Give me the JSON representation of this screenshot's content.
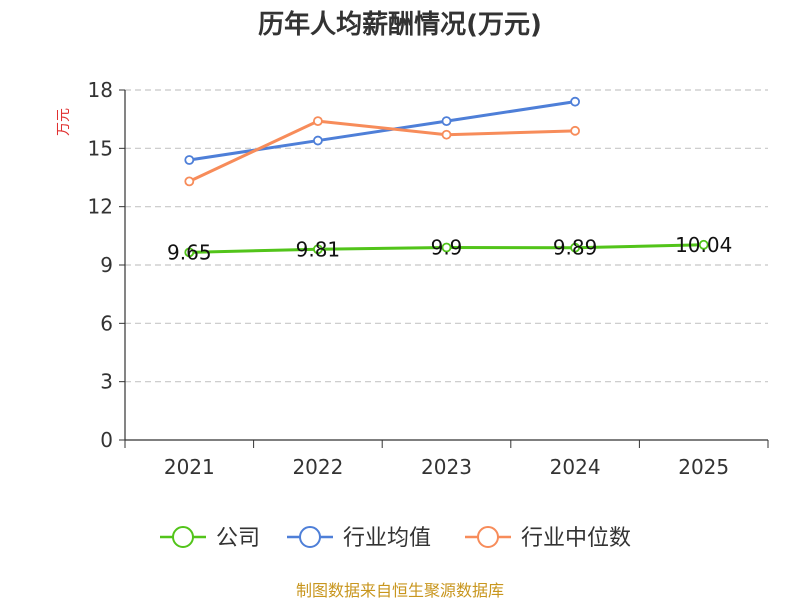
{
  "chart_data": {
    "type": "line",
    "title": "历年人均薪酬情况(万元)",
    "ylabel": "万元",
    "xlabel": "",
    "categories": [
      "2021",
      "2022",
      "2023",
      "2024",
      "2025"
    ],
    "ylim": [
      0,
      18
    ],
    "yticks": [
      "0",
      "3",
      "6",
      "9",
      "12",
      "15",
      "18"
    ],
    "grid": true,
    "legend_position": "bottom",
    "series": [
      {
        "name": "公司",
        "values": [
          9.65,
          9.81,
          9.9,
          9.89,
          10.04
        ],
        "labels": [
          "9.65",
          "9.81",
          "9.9",
          "9.89",
          "10.04"
        ],
        "color": "#52c41a"
      },
      {
        "name": "行业均值",
        "values": [
          14.4,
          15.4,
          16.4,
          17.4,
          null
        ],
        "color": "#4e7fd8"
      },
      {
        "name": "行业中位数",
        "values": [
          13.3,
          16.4,
          15.7,
          15.9,
          null
        ],
        "color": "#f78c5a"
      }
    ]
  },
  "source": "制图数据来自恒生聚源数据库"
}
